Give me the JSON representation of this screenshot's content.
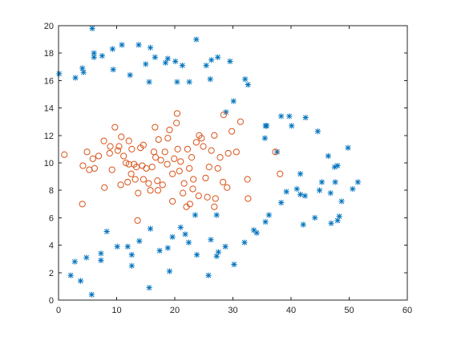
{
  "chart_data": {
    "type": "scatter",
    "title": "",
    "xlabel": "",
    "ylabel": "",
    "xlim": [
      0,
      60
    ],
    "ylim": [
      0,
      20
    ],
    "xticks": [
      0,
      10,
      20,
      30,
      40,
      50,
      60
    ],
    "yticks": [
      0,
      2,
      4,
      6,
      8,
      10,
      12,
      14,
      16,
      18,
      20
    ],
    "grid": false,
    "legend": "none",
    "box": true,
    "series": [
      {
        "marker": "asterisk",
        "color": "#0072BD",
        "points": [
          [
            0.1,
            16.5
          ],
          [
            2.9,
            16.2
          ],
          [
            4.1,
            16.9
          ],
          [
            4.3,
            16.6
          ],
          [
            5.8,
            19.8
          ],
          [
            6.1,
            18.0
          ],
          [
            6.1,
            17.7
          ],
          [
            7.5,
            17.8
          ],
          [
            9.3,
            18.3
          ],
          [
            9.4,
            16.8
          ],
          [
            10.9,
            18.6
          ],
          [
            12.3,
            16.4
          ],
          [
            13.8,
            18.6
          ],
          [
            15.0,
            17.2
          ],
          [
            15.6,
            15.9
          ],
          [
            15.8,
            18.4
          ],
          [
            16.6,
            17.7
          ],
          [
            18.4,
            17.3
          ],
          [
            18.8,
            17.6
          ],
          [
            20.1,
            17.4
          ],
          [
            20.4,
            15.9
          ],
          [
            21.3,
            17.1
          ],
          [
            22.5,
            15.9
          ],
          [
            23.7,
            19.0
          ],
          [
            25.4,
            17.1
          ],
          [
            26.1,
            16.1
          ],
          [
            26.3,
            17.5
          ],
          [
            27.4,
            17.7
          ],
          [
            28.8,
            13.7
          ],
          [
            29.5,
            17.4
          ],
          [
            30.1,
            14.5
          ],
          [
            32.1,
            16.1
          ],
          [
            32.6,
            15.7
          ],
          [
            35.6,
            12.7
          ],
          [
            35.8,
            12.7
          ],
          [
            35.5,
            11.8
          ],
          [
            37.6,
            10.8
          ],
          [
            38.3,
            13.4
          ],
          [
            39.7,
            13.4
          ],
          [
            40.1,
            12.7
          ],
          [
            41.6,
            7.7
          ],
          [
            42.5,
            13.3
          ],
          [
            41.0,
            8.1
          ],
          [
            41.6,
            9.2
          ],
          [
            42.1,
            5.5
          ],
          [
            42.4,
            7.6
          ],
          [
            44.6,
            12.3
          ],
          [
            44.9,
            8.0
          ],
          [
            45.3,
            8.6
          ],
          [
            46.4,
            10.5
          ],
          [
            46.8,
            7.8
          ],
          [
            47.5,
            9.7
          ],
          [
            47.6,
            8.6
          ],
          [
            48.0,
            9.8
          ],
          [
            48.0,
            5.8
          ],
          [
            48.3,
            6.1
          ],
          [
            48.7,
            7.2
          ],
          [
            49.8,
            11.1
          ],
          [
            50.6,
            8.1
          ],
          [
            51.5,
            8.6
          ],
          [
            44.1,
            6.0
          ],
          [
            46.9,
            5.6
          ],
          [
            39.2,
            7.9
          ],
          [
            38.3,
            7.1
          ],
          [
            36.2,
            6.2
          ],
          [
            35.6,
            5.7
          ],
          [
            33.6,
            5.1
          ],
          [
            34.1,
            4.9
          ],
          [
            32.0,
            4.2
          ],
          [
            30.2,
            2.6
          ],
          [
            27.5,
            3.5
          ],
          [
            27.2,
            3.2
          ],
          [
            25.8,
            1.8
          ],
          [
            26.2,
            4.4
          ],
          [
            28.7,
            3.9
          ],
          [
            27.2,
            6.2
          ],
          [
            23.8,
            3.3
          ],
          [
            22.4,
            4.2
          ],
          [
            21.0,
            5.3
          ],
          [
            21.8,
            4.8
          ],
          [
            19.6,
            4.6
          ],
          [
            19.1,
            2.1
          ],
          [
            18.8,
            3.8
          ],
          [
            17.4,
            3.6
          ],
          [
            15.6,
            0.9
          ],
          [
            15.8,
            5.2
          ],
          [
            13.9,
            4.3
          ],
          [
            12.6,
            2.5
          ],
          [
            12.6,
            3.3
          ],
          [
            11.9,
            3.9
          ],
          [
            10.1,
            3.9
          ],
          [
            8.3,
            5.0
          ],
          [
            7.3,
            2.9
          ],
          [
            7.3,
            3.4
          ],
          [
            5.7,
            0.4
          ],
          [
            4.8,
            3.1
          ],
          [
            3.8,
            1.4
          ],
          [
            2.8,
            2.8
          ],
          [
            2.1,
            1.8
          ],
          [
            23.5,
            6.2
          ]
        ]
      },
      {
        "marker": "circle",
        "color": "#D95319",
        "points": [
          [
            1.0,
            10.6
          ],
          [
            4.1,
            7.0
          ],
          [
            4.2,
            9.8
          ],
          [
            4.9,
            10.8
          ],
          [
            5.3,
            9.5
          ],
          [
            5.9,
            10.3
          ],
          [
            6.2,
            9.6
          ],
          [
            6.9,
            10.5
          ],
          [
            7.8,
            11.6
          ],
          [
            7.9,
            8.2
          ],
          [
            8.8,
            10.7
          ],
          [
            8.9,
            11.2
          ],
          [
            9.2,
            9.5
          ],
          [
            9.7,
            12.6
          ],
          [
            10.2,
            10.9
          ],
          [
            10.4,
            11.2
          ],
          [
            10.7,
            8.4
          ],
          [
            10.8,
            11.9
          ],
          [
            11.2,
            10.5
          ],
          [
            11.6,
            10.0
          ],
          [
            11.9,
            8.6
          ],
          [
            12.1,
            11.6
          ],
          [
            12.1,
            9.9
          ],
          [
            12.5,
            9.2
          ],
          [
            12.6,
            11.0
          ],
          [
            13.0,
            9.9
          ],
          [
            13.2,
            8.8
          ],
          [
            13.4,
            9.7
          ],
          [
            13.6,
            5.8
          ],
          [
            13.7,
            7.8
          ],
          [
            14.1,
            11.1
          ],
          [
            14.4,
            9.8
          ],
          [
            14.6,
            11.3
          ],
          [
            14.6,
            8.8
          ],
          [
            15.1,
            9.6
          ],
          [
            15.5,
            8.5
          ],
          [
            15.8,
            8.0
          ],
          [
            16.1,
            9.7
          ],
          [
            16.4,
            10.8
          ],
          [
            16.6,
            12.6
          ],
          [
            16.7,
            10.4
          ],
          [
            17.0,
            8.7
          ],
          [
            17.1,
            8.0
          ],
          [
            17.2,
            11.7
          ],
          [
            17.6,
            10.2
          ],
          [
            17.9,
            8.4
          ],
          [
            18.3,
            10.8
          ],
          [
            18.7,
            9.9
          ],
          [
            18.8,
            11.8
          ],
          [
            19.1,
            12.4
          ],
          [
            19.6,
            9.2
          ],
          [
            19.9,
            10.3
          ],
          [
            20.3,
            12.9
          ],
          [
            20.4,
            13.6
          ],
          [
            20.5,
            11.0
          ],
          [
            20.8,
            9.4
          ],
          [
            21.0,
            10.1
          ],
          [
            21.4,
            7.8
          ],
          [
            21.6,
            8.5
          ],
          [
            22.0,
            6.8
          ],
          [
            22.2,
            11.0
          ],
          [
            22.5,
            9.6
          ],
          [
            22.9,
            10.4
          ],
          [
            23.1,
            8.1
          ],
          [
            23.2,
            8.8
          ],
          [
            23.7,
            11.5
          ],
          [
            24.2,
            12.0
          ],
          [
            24.6,
            11.8
          ],
          [
            24.9,
            11.2
          ],
          [
            25.3,
            8.9
          ],
          [
            25.6,
            7.5
          ],
          [
            25.9,
            9.7
          ],
          [
            26.3,
            10.9
          ],
          [
            26.8,
            12.0
          ],
          [
            27.0,
            7.4
          ],
          [
            27.4,
            9.6
          ],
          [
            27.8,
            10.4
          ],
          [
            28.3,
            8.6
          ],
          [
            28.4,
            13.5
          ],
          [
            29.0,
            8.2
          ],
          [
            29.2,
            10.7
          ],
          [
            29.8,
            12.3
          ],
          [
            30.6,
            10.8
          ],
          [
            31.3,
            13.0
          ],
          [
            32.5,
            8.8
          ],
          [
            32.6,
            7.4
          ],
          [
            37.3,
            10.8
          ],
          [
            38.1,
            9.2
          ],
          [
            19.6,
            7.2
          ],
          [
            22.6,
            7.0
          ],
          [
            24.1,
            7.6
          ],
          [
            26.8,
            6.8
          ]
        ]
      }
    ]
  }
}
